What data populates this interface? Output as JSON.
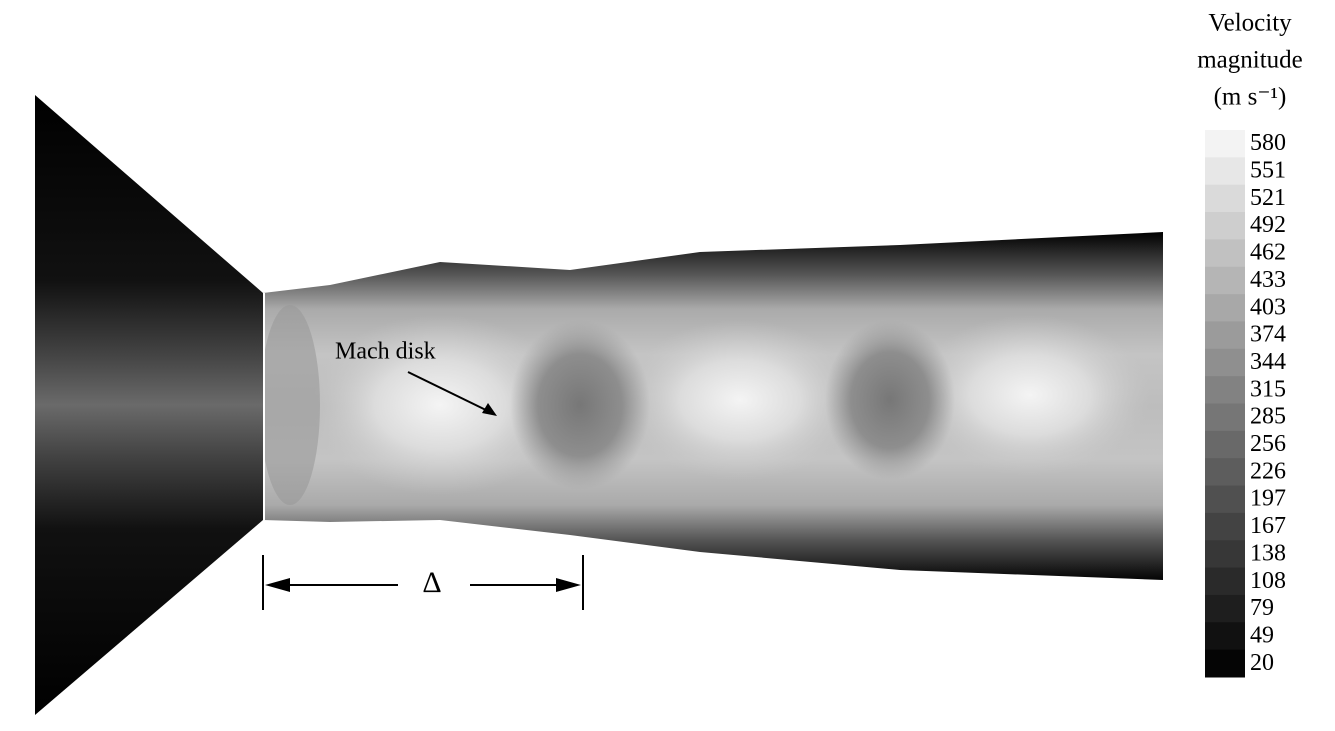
{
  "figure": {
    "annotations": {
      "mach_disk": "Mach disk",
      "standoff": "Δ"
    },
    "colorbar": {
      "title": [
        "Velocity",
        "magnitude",
        "(m s⁻¹)"
      ],
      "ticks": [
        580,
        551,
        521,
        492,
        462,
        433,
        403,
        374,
        344,
        315,
        285,
        256,
        226,
        197,
        167,
        138,
        108,
        79,
        49,
        20
      ]
    }
  }
}
